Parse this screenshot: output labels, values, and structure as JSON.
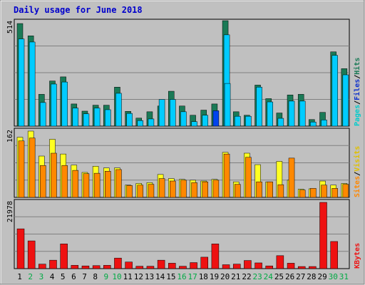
{
  "chart_data": {
    "type": "bar",
    "title": "Daily usage for June 2018",
    "days": [
      "1",
      "2",
      "3",
      "4",
      "5",
      "6",
      "7",
      "8",
      "9",
      "10",
      "11",
      "12",
      "13",
      "14",
      "15",
      "16",
      "17",
      "18",
      "19",
      "20",
      "21",
      "22",
      "23",
      "24",
      "25",
      "26",
      "27",
      "28",
      "29",
      "30",
      "31"
    ],
    "weekend_days": [
      "2",
      "3",
      "9",
      "10",
      "16",
      "17",
      "23",
      "24",
      "30",
      "31"
    ],
    "panels": [
      {
        "id": "hits-files",
        "ymax_label": "514",
        "ymax": 514,
        "series": [
          {
            "name": "Hits",
            "color": "#1a7a56",
            "values": [
              500,
              440,
              155,
              220,
              240,
              108,
              73,
              102,
              102,
              190,
              72,
              39,
              70,
              98,
              170,
              98,
              53,
              78,
              108,
              514,
              70,
              53,
              200,
              134,
              64,
              152,
              155,
              32,
              67,
              362,
              280
            ]
          },
          {
            "name": "Files",
            "color": "#00ccff",
            "values": [
              425,
              410,
              115,
              205,
              215,
              88,
              60,
              88,
              80,
              160,
              62,
              27,
              35,
              130,
              130,
              70,
              22,
              53,
              75,
              445,
              48,
              48,
              190,
              118,
              38,
              122,
              122,
              20,
              30,
              345,
              250
            ]
          },
          {
            "name": "Pages",
            "color": "#00ccff",
            "values": [
              0,
              0,
              0,
              0,
              0,
              0,
              0,
              0,
              0,
              0,
              0,
              0,
              0,
              0,
              0,
              0,
              0,
              0,
              0,
              208,
              0,
              0,
              0,
              0,
              0,
              0,
              0,
              0,
              0,
              0,
              0
            ]
          }
        ],
        "legend": [
          {
            "text": "Pages",
            "color": "#00cccc"
          },
          {
            "text": "Files",
            "color": "#1133cc"
          },
          {
            "text": "Hits",
            "color": "#1a7a56"
          }
        ]
      },
      {
        "id": "visits-sites",
        "ymax_label": "162",
        "ymax": 162,
        "series": [
          {
            "name": "Visits",
            "color": "#ffff22",
            "values": [
              147,
              162,
              101,
              142,
              106,
              79,
              61,
              76,
              72,
              72,
              30,
              34,
              36,
              56,
              46,
              44,
              42,
              40,
              44,
              110,
              38,
              108,
              80,
              38,
              88,
              42,
              20,
              21,
              40,
              30,
              34
            ]
          },
          {
            "name": "Sites",
            "color": "#ff8800",
            "values": [
              138,
              145,
              78,
              108,
              78,
              66,
              58,
              59,
              64,
              68,
              29,
              30,
              32,
              46,
              40,
              42,
              36,
              38,
              42,
              106,
              32,
              98,
              38,
              38,
              31,
              96,
              18,
              22,
              30,
              22,
              32
            ]
          }
        ],
        "legend": [
          {
            "text": "Sites",
            "color": "#ff8800"
          },
          {
            "text": "Visits",
            "color": "#e0c000"
          }
        ]
      },
      {
        "id": "kbytes",
        "ymax_label": "21978",
        "ymax": 21978,
        "series": [
          {
            "name": "KBytes",
            "color": "#ee1111",
            "values": [
              13200,
              9200,
              1500,
              2800,
              8200,
              1100,
              900,
              1000,
              1100,
              3500,
              2200,
              800,
              800,
              2800,
              1800,
              800,
              2000,
              3800,
              8200,
              1300,
              1500,
              2700,
              1900,
              900,
              4300,
              1800,
              700,
              700,
              21978,
              9000,
              0
            ]
          }
        ],
        "legend": [
          {
            "text": "KBytes",
            "color": "#ee1111"
          }
        ]
      }
    ]
  }
}
